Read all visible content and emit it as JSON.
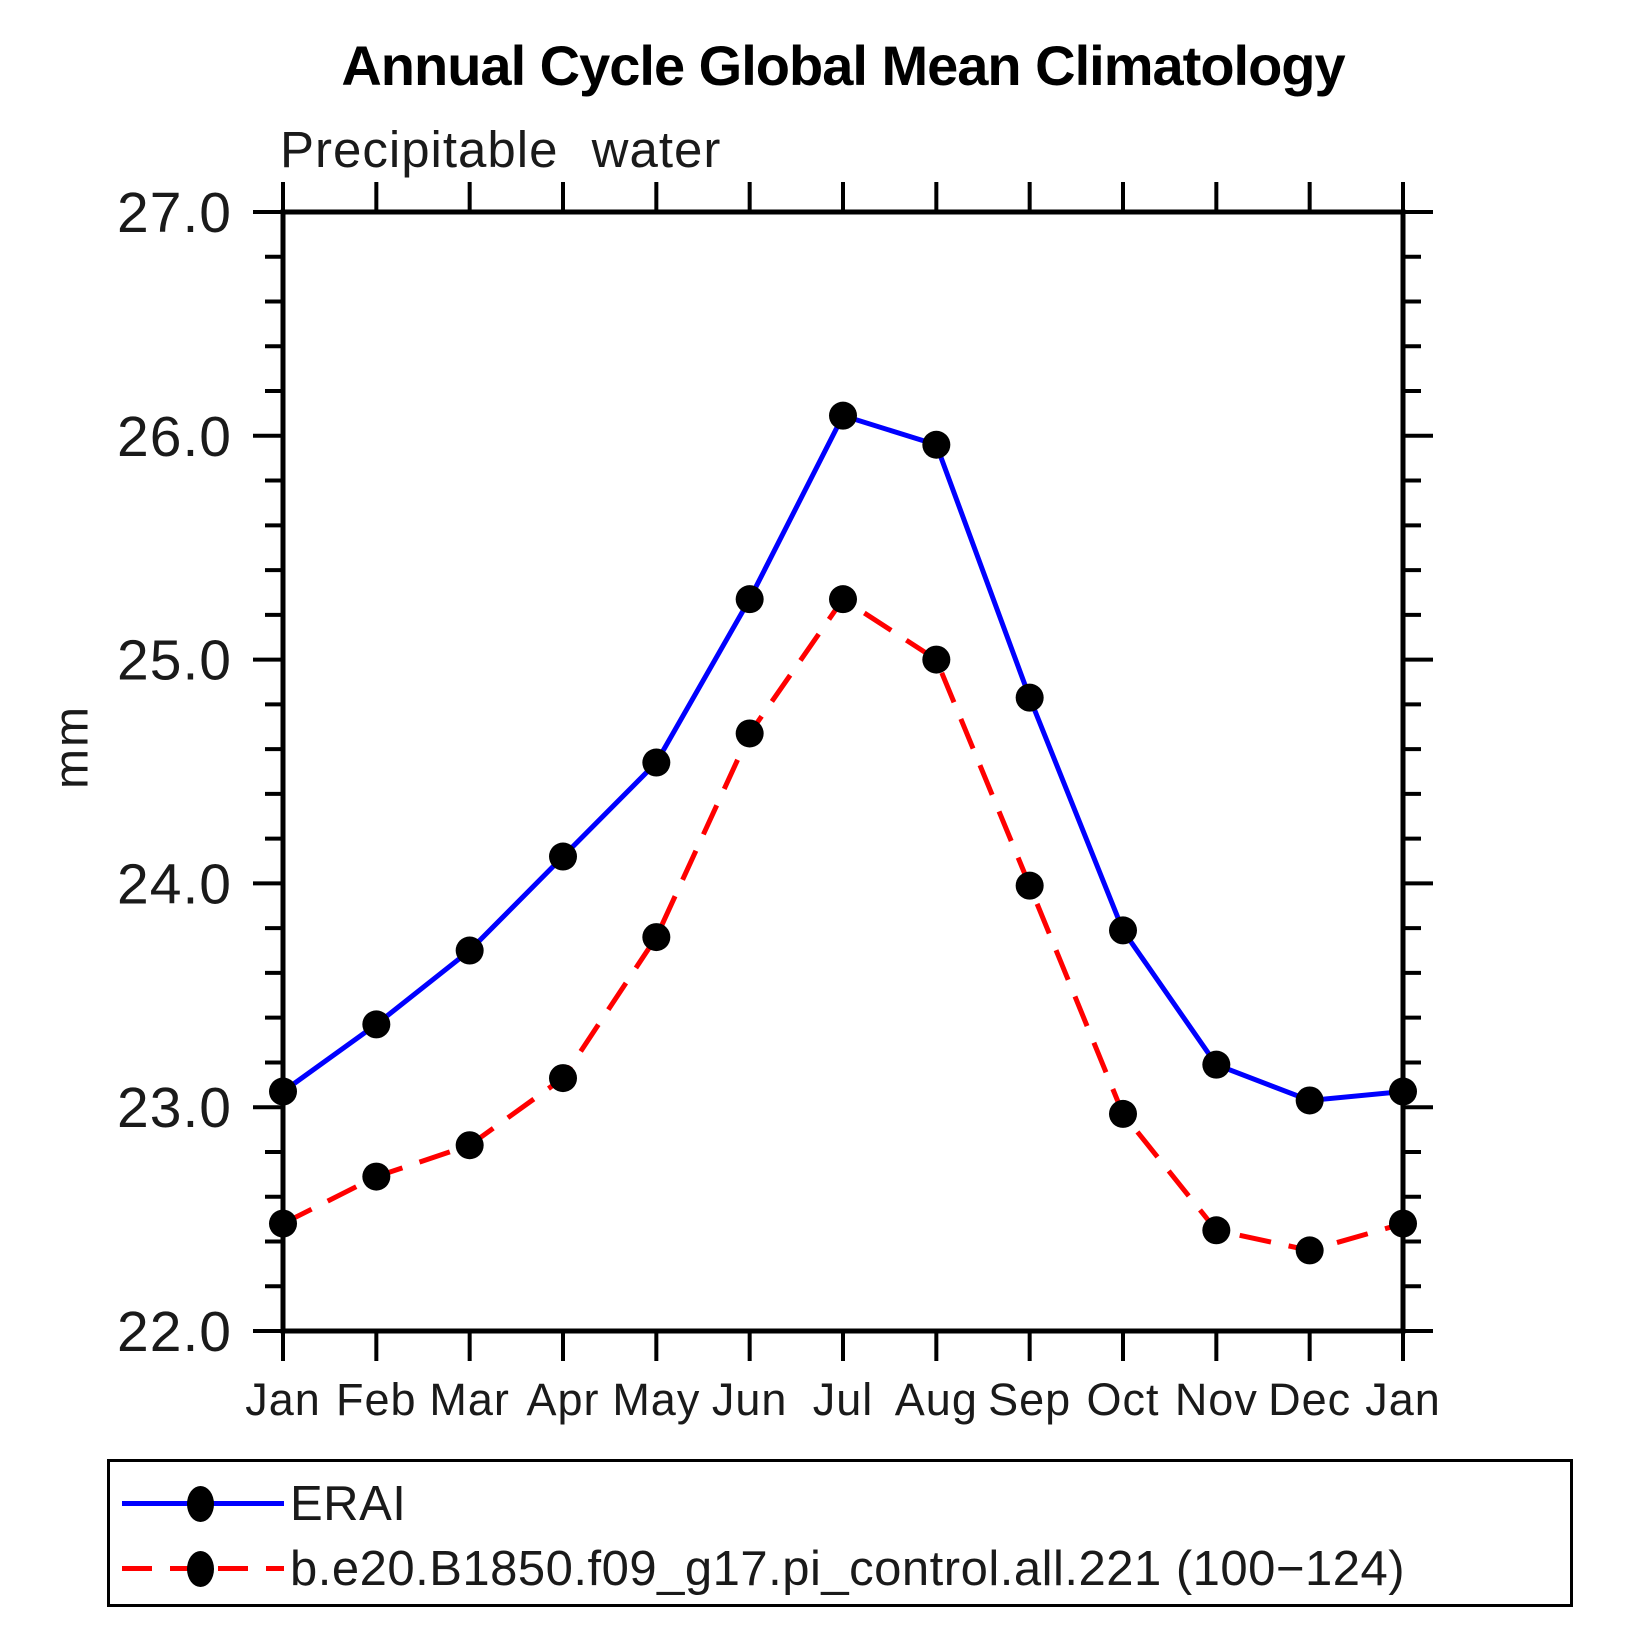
{
  "title": "Annual Cycle Global Mean Climatology",
  "chart_data": {
    "type": "line",
    "title": "Annual Cycle Global Mean Climatology",
    "subtitle": "Precipitable water",
    "ylabel": "mm",
    "ylim": [
      22.0,
      27.0
    ],
    "ytick_major_labels": [
      "22.0",
      "23.0",
      "24.0",
      "25.0",
      "26.0",
      "27.0"
    ],
    "ytick_minor_step": 0.2,
    "grid": false,
    "axis_color": "#000000",
    "marker_color": "#000000",
    "legend_position": "bottom",
    "categories": [
      "Jan",
      "Feb",
      "Mar",
      "Apr",
      "May",
      "Jun",
      "Jul",
      "Aug",
      "Sep",
      "Oct",
      "Nov",
      "Dec",
      "Jan"
    ],
    "series": [
      {
        "name": "ERAI",
        "color": "#0000ff",
        "line_style": "solid",
        "marker": "filled-circle",
        "values": [
          23.07,
          23.37,
          23.7,
          24.12,
          24.54,
          25.27,
          26.09,
          25.96,
          24.83,
          23.79,
          23.19,
          23.03,
          23.07
        ]
      },
      {
        "name": "b.e20.B1850.f09_g17.pi_control.all.221 (100−124)",
        "color": "#ff0000",
        "line_style": "dashed",
        "marker": "filled-circle",
        "values": [
          22.48,
          22.69,
          22.83,
          23.13,
          23.76,
          24.67,
          25.27,
          25.0,
          23.99,
          22.97,
          22.45,
          22.36,
          22.48
        ]
      }
    ]
  }
}
